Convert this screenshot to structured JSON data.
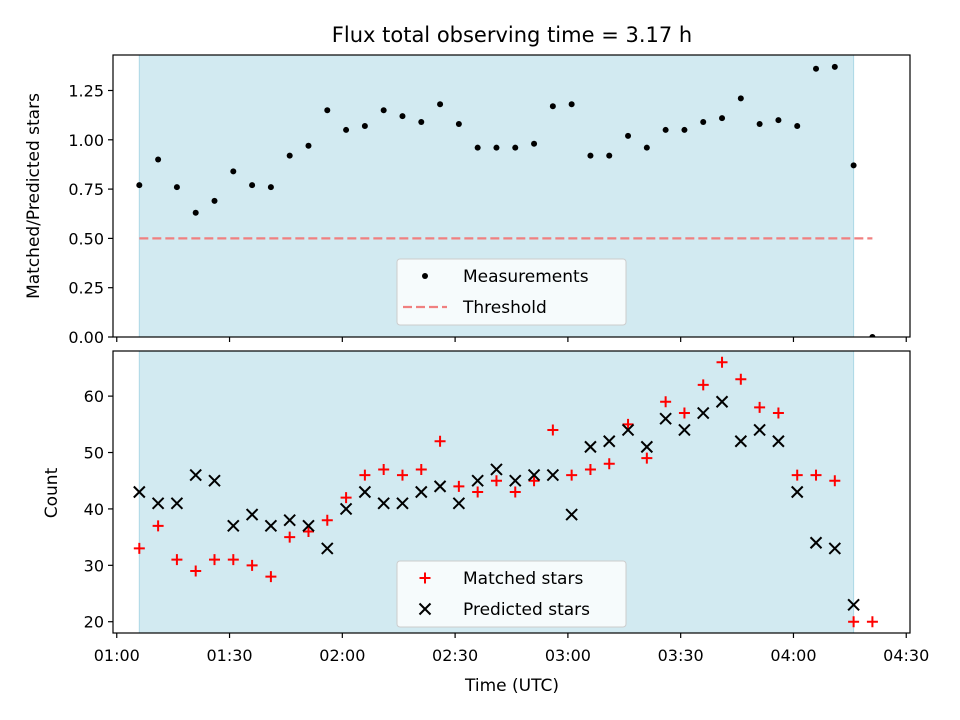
{
  "chart_data": [
    {
      "type": "scatter",
      "title": "Flux total observing time = 3.17 h",
      "ylabel": "Matched/Predicted stars",
      "xlabel": "",
      "ylim": [
        0,
        1.43
      ],
      "xlim": [
        "00:59",
        "04:31"
      ],
      "yticks": [
        0.0,
        0.25,
        0.5,
        0.75,
        1.0,
        1.25
      ],
      "ytick_labels": [
        "0.00",
        "0.25",
        "0.50",
        "0.75",
        "1.00",
        "1.25"
      ],
      "shaded_span": [
        "01:06",
        "04:16"
      ],
      "shade_color": "#add8e6",
      "legend_location": "lower center",
      "series": [
        {
          "name": "Measurements",
          "marker": "dot",
          "color": "#000000",
          "points": [
            [
              "01:06",
              0.77
            ],
            [
              "01:11",
              0.9
            ],
            [
              "01:16",
              0.76
            ],
            [
              "01:21",
              0.63
            ],
            [
              "01:26",
              0.69
            ],
            [
              "01:31",
              0.84
            ],
            [
              "01:36",
              0.77
            ],
            [
              "01:41",
              0.76
            ],
            [
              "01:46",
              0.92
            ],
            [
              "01:51",
              0.97
            ],
            [
              "01:56",
              1.15
            ],
            [
              "02:01",
              1.05
            ],
            [
              "02:06",
              1.07
            ],
            [
              "02:11",
              1.15
            ],
            [
              "02:16",
              1.12
            ],
            [
              "02:21",
              1.09
            ],
            [
              "02:26",
              1.18
            ],
            [
              "02:31",
              1.08
            ],
            [
              "02:36",
              0.96
            ],
            [
              "02:41",
              0.96
            ],
            [
              "02:46",
              0.96
            ],
            [
              "02:51",
              0.98
            ],
            [
              "02:56",
              1.17
            ],
            [
              "03:01",
              1.18
            ],
            [
              "03:06",
              0.92
            ],
            [
              "03:11",
              0.92
            ],
            [
              "03:16",
              1.02
            ],
            [
              "03:21",
              0.96
            ],
            [
              "03:26",
              1.05
            ],
            [
              "03:31",
              1.05
            ],
            [
              "03:36",
              1.09
            ],
            [
              "03:41",
              1.11
            ],
            [
              "03:46",
              1.21
            ],
            [
              "03:51",
              1.08
            ],
            [
              "03:56",
              1.1
            ],
            [
              "04:01",
              1.07
            ],
            [
              "04:06",
              1.36
            ],
            [
              "04:11",
              1.37
            ],
            [
              "04:16",
              0.87
            ],
            [
              "04:21",
              0.0
            ]
          ]
        },
        {
          "name": "Threshold",
          "marker": "dashed-line",
          "color": "#f08080",
          "value": 0.5,
          "x_range": [
            "01:06",
            "04:21"
          ]
        }
      ]
    },
    {
      "type": "scatter",
      "title": "",
      "ylabel": "Count",
      "xlabel": "Time (UTC)",
      "ylim": [
        18,
        68
      ],
      "xlim": [
        "00:59",
        "04:31"
      ],
      "yticks": [
        20,
        30,
        40,
        50,
        60
      ],
      "ytick_labels": [
        "20",
        "30",
        "40",
        "50",
        "60"
      ],
      "xticks": [
        "01:00",
        "01:30",
        "02:00",
        "02:30",
        "03:00",
        "03:30",
        "04:00",
        "04:30"
      ],
      "shaded_span": [
        "01:06",
        "04:16"
      ],
      "shade_color": "#add8e6",
      "legend_location": "lower center",
      "series": [
        {
          "name": "Matched stars",
          "marker": "plus",
          "color": "#ff0000",
          "points": [
            [
              "01:06",
              33
            ],
            [
              "01:11",
              37
            ],
            [
              "01:16",
              31
            ],
            [
              "01:21",
              29
            ],
            [
              "01:26",
              31
            ],
            [
              "01:31",
              31
            ],
            [
              "01:36",
              30
            ],
            [
              "01:41",
              28
            ],
            [
              "01:46",
              35
            ],
            [
              "01:51",
              36
            ],
            [
              "01:56",
              38
            ],
            [
              "02:01",
              42
            ],
            [
              "02:06",
              46
            ],
            [
              "02:11",
              47
            ],
            [
              "02:16",
              46
            ],
            [
              "02:21",
              47
            ],
            [
              "02:26",
              52
            ],
            [
              "02:31",
              44
            ],
            [
              "02:36",
              43
            ],
            [
              "02:41",
              45
            ],
            [
              "02:46",
              43
            ],
            [
              "02:51",
              45
            ],
            [
              "02:56",
              54
            ],
            [
              "03:01",
              46
            ],
            [
              "03:06",
              47
            ],
            [
              "03:11",
              48
            ],
            [
              "03:16",
              55
            ],
            [
              "03:21",
              49
            ],
            [
              "03:26",
              59
            ],
            [
              "03:31",
              57
            ],
            [
              "03:36",
              62
            ],
            [
              "03:41",
              66
            ],
            [
              "03:46",
              63
            ],
            [
              "03:51",
              58
            ],
            [
              "03:56",
              57
            ],
            [
              "04:01",
              46
            ],
            [
              "04:06",
              46
            ],
            [
              "04:11",
              45
            ],
            [
              "04:16",
              20
            ],
            [
              "04:21",
              20
            ]
          ]
        },
        {
          "name": "Predicted stars",
          "marker": "x",
          "color": "#000000",
          "points": [
            [
              "01:06",
              43
            ],
            [
              "01:11",
              41
            ],
            [
              "01:16",
              41
            ],
            [
              "01:21",
              46
            ],
            [
              "01:26",
              45
            ],
            [
              "01:31",
              37
            ],
            [
              "01:36",
              39
            ],
            [
              "01:41",
              37
            ],
            [
              "01:46",
              38
            ],
            [
              "01:51",
              37
            ],
            [
              "01:56",
              33
            ],
            [
              "02:01",
              40
            ],
            [
              "02:06",
              43
            ],
            [
              "02:11",
              41
            ],
            [
              "02:16",
              41
            ],
            [
              "02:21",
              43
            ],
            [
              "02:26",
              44
            ],
            [
              "02:31",
              41
            ],
            [
              "02:36",
              45
            ],
            [
              "02:41",
              47
            ],
            [
              "02:46",
              45
            ],
            [
              "02:51",
              46
            ],
            [
              "02:56",
              46
            ],
            [
              "03:01",
              39
            ],
            [
              "03:06",
              51
            ],
            [
              "03:11",
              52
            ],
            [
              "03:16",
              54
            ],
            [
              "03:21",
              51
            ],
            [
              "03:26",
              56
            ],
            [
              "03:31",
              54
            ],
            [
              "03:36",
              57
            ],
            [
              "03:41",
              59
            ],
            [
              "03:46",
              52
            ],
            [
              "03:51",
              54
            ],
            [
              "03:56",
              52
            ],
            [
              "04:01",
              43
            ],
            [
              "04:06",
              34
            ],
            [
              "04:11",
              33
            ],
            [
              "04:16",
              23
            ]
          ]
        }
      ]
    }
  ]
}
